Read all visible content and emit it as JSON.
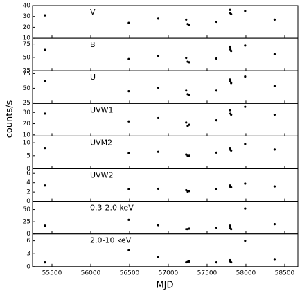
{
  "ylabel": "counts/s",
  "chart_data": [
    {
      "type": "scatter",
      "label": "V",
      "color": "#000000",
      "xlim": [
        55250,
        58670
      ],
      "ylim": [
        10,
        40
      ],
      "yticks": [
        10,
        20,
        30,
        40
      ],
      "x": [
        55410,
        56490,
        56870,
        57230,
        57250,
        57270,
        57620,
        57795,
        57800,
        57810,
        57990,
        58370
      ],
      "values": [
        31,
        24,
        28,
        27,
        23,
        22,
        25,
        36,
        33,
        32,
        35,
        27
      ]
    },
    {
      "type": "scatter",
      "label": "B",
      "color": "#000000",
      "xlim": [
        55250,
        58670
      ],
      "ylim": [
        25,
        86
      ],
      "yticks": [
        25,
        50,
        75
      ],
      "x": [
        55410,
        56490,
        56870,
        57230,
        57250,
        57270,
        57620,
        57795,
        57800,
        57810,
        57990,
        58370
      ],
      "values": [
        64,
        47,
        53,
        49,
        42,
        41,
        48,
        70,
        65,
        62,
        72,
        56
      ]
    },
    {
      "type": "scatter",
      "label": "U",
      "color": "#000000",
      "xlim": [
        55250,
        58670
      ],
      "ylim": [
        24,
        80
      ],
      "yticks": [
        25,
        50,
        75
      ],
      "x": [
        55410,
        56490,
        56870,
        57230,
        57250,
        57270,
        57620,
        57795,
        57800,
        57810,
        57990,
        58370
      ],
      "values": [
        62,
        45,
        51,
        46,
        40,
        39,
        46,
        65,
        62,
        59,
        70,
        54
      ]
    },
    {
      "type": "scatter",
      "label": "UVW1",
      "color": "#000000",
      "xlim": [
        55250,
        58670
      ],
      "ylim": [
        9,
        38
      ],
      "yticks": [
        10,
        20,
        30
      ],
      "x": [
        55410,
        56490,
        56870,
        57230,
        57250,
        57270,
        57620,
        57795,
        57800,
        57810,
        57990,
        58370
      ],
      "values": [
        29,
        22,
        25,
        21,
        18,
        19,
        23,
        32,
        29,
        28,
        35,
        28
      ]
    },
    {
      "type": "scatter",
      "label": "UVM2",
      "color": "#000000",
      "xlim": [
        55250,
        58670
      ],
      "ylim": [
        0,
        12.6
      ],
      "yticks": [
        0,
        5,
        10
      ],
      "x": [
        55410,
        56490,
        56870,
        57230,
        57250,
        57270,
        57620,
        57795,
        57800,
        57810,
        57990,
        58370
      ],
      "values": [
        8,
        6,
        6.5,
        5.5,
        5,
        5,
        6.2,
        8,
        7.3,
        7,
        9.5,
        7.4
      ]
    },
    {
      "type": "scatter",
      "label": "UVW2",
      "color": "#000000",
      "xlim": [
        55250,
        58670
      ],
      "ylim": [
        0,
        7
      ],
      "yticks": [
        0,
        2,
        4,
        6
      ],
      "x": [
        55410,
        56490,
        56870,
        57230,
        57250,
        57270,
        57620,
        57795,
        57800,
        57810,
        57990,
        58370
      ],
      "values": [
        3.4,
        2.6,
        2.7,
        2.4,
        2.1,
        2.2,
        2.6,
        3.4,
        3.1,
        3.0,
        3.8,
        3.2
      ]
    },
    {
      "type": "scatter",
      "label": "0.3-2.0 keV",
      "color": "#000000",
      "xlim": [
        55250,
        58670
      ],
      "ylim": [
        0,
        67
      ],
      "yticks": [
        0,
        25,
        50
      ],
      "x": [
        55410,
        56490,
        56870,
        57230,
        57250,
        57270,
        57620,
        57795,
        57800,
        57810,
        57990,
        58370
      ],
      "values": [
        17,
        29,
        18,
        10,
        10,
        11,
        13,
        17,
        12,
        10,
        52,
        20
      ]
    },
    {
      "type": "scatter",
      "label": "2.0-10 keV",
      "color": "#000000",
      "xlim": [
        55250,
        58670
      ],
      "ylim": [
        0,
        7.6
      ],
      "yticks": [
        0,
        3,
        6
      ],
      "x": [
        55410,
        56490,
        56870,
        57230,
        57250,
        57270,
        57620,
        57795,
        57800,
        57810,
        57990,
        58370
      ],
      "values": [
        1.0,
        3.8,
        2.2,
        1.0,
        1.1,
        1.2,
        1.0,
        1.5,
        1.2,
        1.0,
        6.0,
        1.6
      ],
      "xlabel": "MJD",
      "xticks": [
        55500,
        56000,
        56500,
        57000,
        57500,
        58000,
        58500
      ]
    }
  ]
}
